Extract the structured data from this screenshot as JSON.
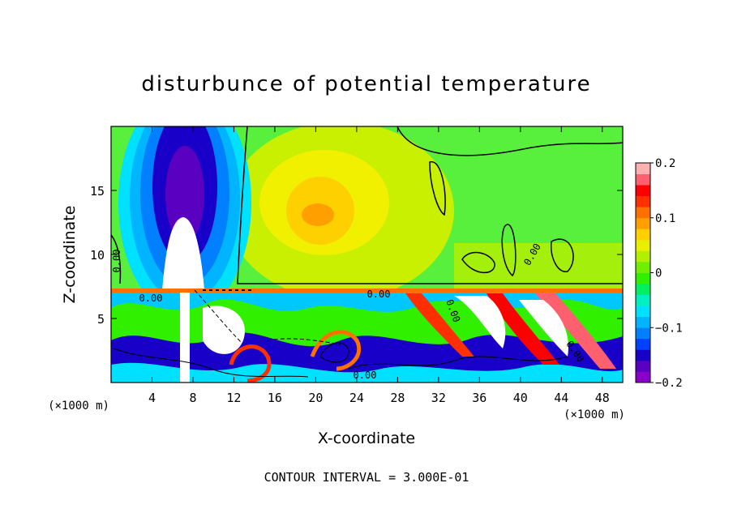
{
  "chart_data": {
    "type": "heatmap",
    "title": "disturbunce of potential temperature",
    "xlabel": "X-coordinate",
    "ylabel": "Z-coordinate",
    "x_unit": "(×1000 m)",
    "x_unit_right": "(×1000 m)",
    "xlim": [
      0,
      50
    ],
    "ylim": [
      0,
      20
    ],
    "x_ticks": [
      4,
      8,
      12,
      16,
      20,
      24,
      28,
      32,
      36,
      40,
      44,
      48
    ],
    "y_ticks": [
      5,
      10,
      15
    ],
    "footer": "CONTOUR INTERVAL = 3.000E-01",
    "colorbar": {
      "range": [
        -0.2,
        0.2
      ],
      "tick_values": [
        0.2,
        0.1,
        0,
        -0.1,
        -0.2
      ],
      "tick_labels": [
        "0.2",
        "0.1",
        "0",
        "−0.1",
        "−0.2"
      ],
      "colors": [
        "#8b00c8",
        "#5a00c0",
        "#1800c8",
        "#0040ff",
        "#0080ff",
        "#00b4ff",
        "#00e0ff",
        "#00f0c0",
        "#00f060",
        "#30f000",
        "#70f000",
        "#b0f000",
        "#e8f000",
        "#ffd000",
        "#ffa000",
        "#ff7000",
        "#ff3000",
        "#ff0000",
        "#ff6070",
        "#ffb0b0"
      ]
    },
    "contour_labels": [
      "0.00",
      "0.00",
      "0.00",
      "0.00",
      "0.00",
      "0.00",
      "0.00"
    ]
  }
}
